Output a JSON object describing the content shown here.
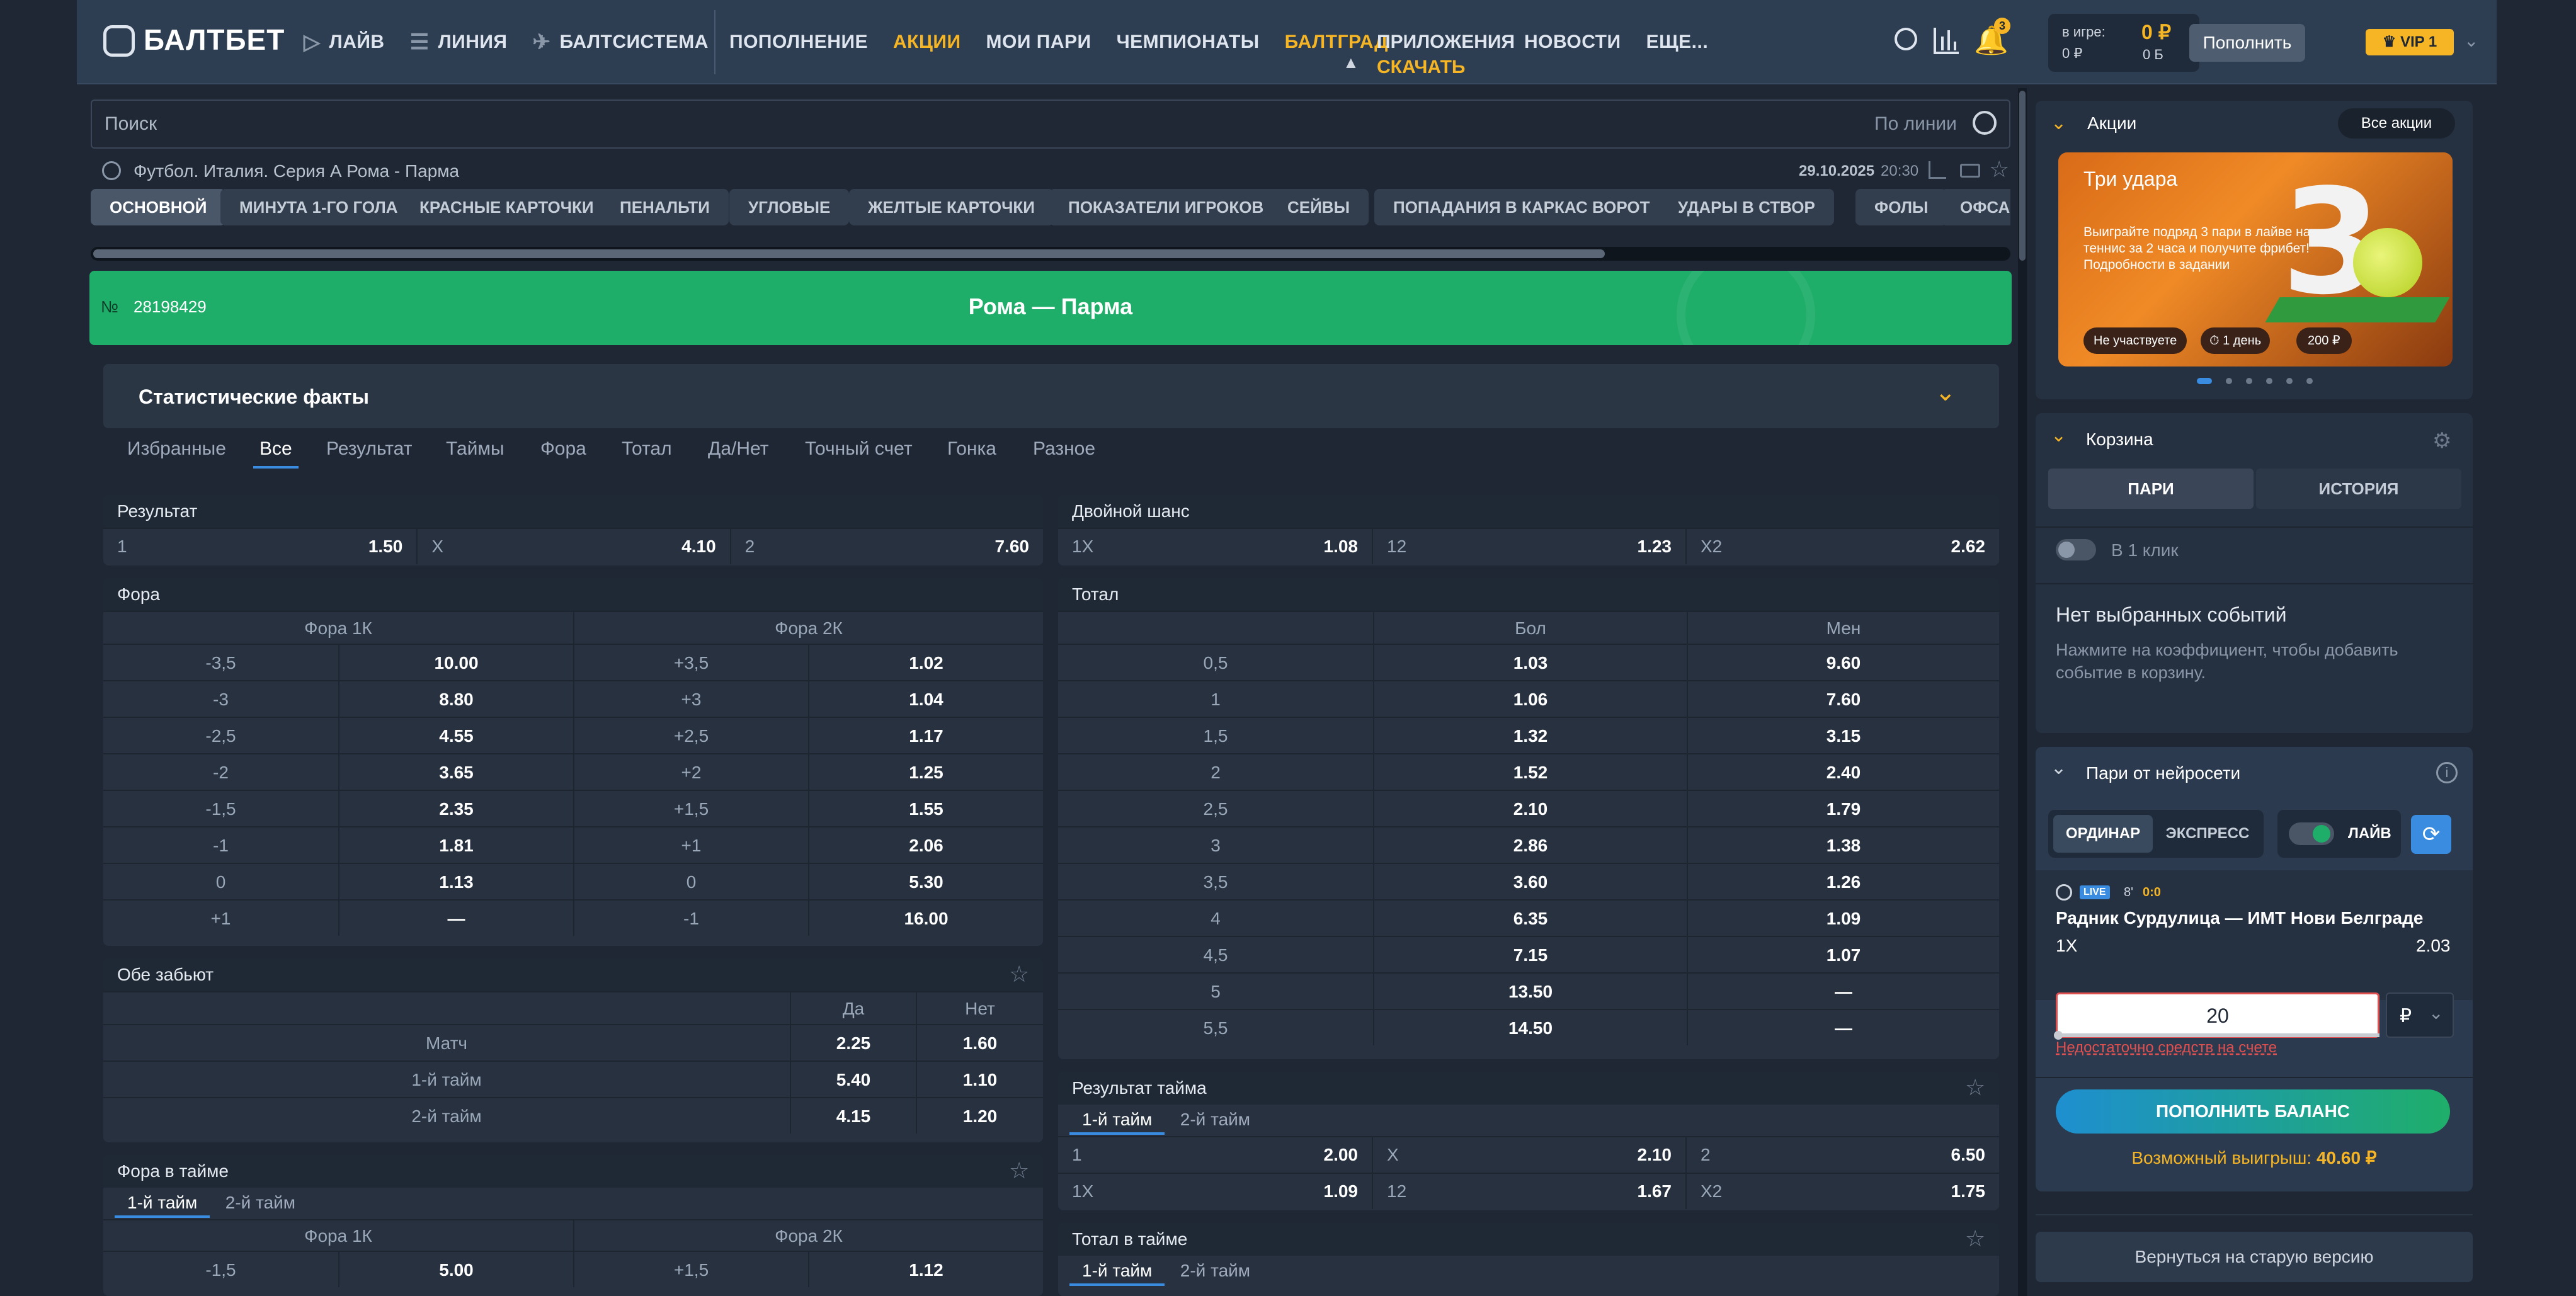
{
  "header": {
    "logo": "БАЛТБЕТ",
    "nav": [
      "ЛАЙВ",
      "ЛИНИЯ",
      "БАЛТСИСТЕМА"
    ],
    "menu": [
      "ПОПОЛНЕНИЕ",
      "АКЦИИ",
      "МОИ ПАРИ",
      "ЧЕМПИОНАТЫ",
      "БАЛТГРАД",
      "ПРИЛОЖЕНИЯ",
      "НОВОСТИ",
      "ЕЩЕ..."
    ],
    "download": "СКАЧАТЬ",
    "notif_count": "3",
    "in_game_label": "в игре:",
    "in_game_value": "0 ₽",
    "balance": "0 ₽",
    "balance2": "0 Б",
    "deposit_btn": "Пополнить",
    "vip": "VIP 1"
  },
  "search": {
    "placeholder": "Поиск",
    "mode": "По линии"
  },
  "event": {
    "breadcrumb": "Футбол. Италия. Серия А  Рома - Парма",
    "date": "29.10.2025",
    "time": "20:30",
    "number_label": "№",
    "number": "28198429",
    "title": "Рома — Парма"
  },
  "chips": [
    "ОСНОВНОЙ",
    "МИНУТА 1-ГО ГОЛА",
    "КРАСНЫЕ КАРТОЧКИ",
    "ПЕНАЛЬТИ",
    "УГЛОВЫЕ",
    "ЖЕЛТЫЕ КАРТОЧКИ",
    "ПОКАЗАТЕЛИ ИГРОКОВ",
    "СЕЙВЫ",
    "ПОПАДАНИЯ В КАРКАС ВОРОТ",
    "УДАРЫ В СТВОР",
    "ФОЛЫ",
    "ОФСАЙ"
  ],
  "stats": {
    "title": "Статистические факты"
  },
  "filters": [
    "Избранные",
    "Все",
    "Результат",
    "Таймы",
    "Фора",
    "Тотал",
    "Да/Нет",
    "Точный счет",
    "Гонка",
    "Разное"
  ],
  "result": {
    "title": "Результат",
    "cells": [
      {
        "k": "1",
        "v": "1.50"
      },
      {
        "k": "X",
        "v": "4.10"
      },
      {
        "k": "2",
        "v": "7.60"
      }
    ]
  },
  "double": {
    "title": "Двойной шанс",
    "cells": [
      {
        "k": "1X",
        "v": "1.08"
      },
      {
        "k": "12",
        "v": "1.23"
      },
      {
        "k": "X2",
        "v": "2.62"
      }
    ]
  },
  "fora": {
    "title": "Фора",
    "col1": "Фора 1К",
    "col2": "Фора 2К",
    "rows": [
      [
        "-3,5",
        "10.00",
        "+3,5",
        "1.02"
      ],
      [
        "-3",
        "8.80",
        "+3",
        "1.04"
      ],
      [
        "-2,5",
        "4.55",
        "+2,5",
        "1.17"
      ],
      [
        "-2",
        "3.65",
        "+2",
        "1.25"
      ],
      [
        "-1,5",
        "2.35",
        "+1,5",
        "1.55"
      ],
      [
        "-1",
        "1.81",
        "+1",
        "2.06"
      ],
      [
        "0",
        "1.13",
        "0",
        "5.30"
      ],
      [
        "+1",
        "—",
        "-1",
        "16.00"
      ]
    ]
  },
  "total": {
    "title": "Тотал",
    "over": "Бол",
    "under": "Мен",
    "rows": [
      [
        "0,5",
        "1.03",
        "9.60"
      ],
      [
        "1",
        "1.06",
        "7.60"
      ],
      [
        "1,5",
        "1.32",
        "3.15"
      ],
      [
        "2",
        "1.52",
        "2.40"
      ],
      [
        "2,5",
        "2.10",
        "1.79"
      ],
      [
        "3",
        "2.86",
        "1.38"
      ],
      [
        "3,5",
        "3.60",
        "1.26"
      ],
      [
        "4",
        "6.35",
        "1.09"
      ],
      [
        "4,5",
        "7.15",
        "1.07"
      ],
      [
        "5",
        "13.50",
        "—"
      ],
      [
        "5,5",
        "14.50",
        "—"
      ]
    ]
  },
  "both": {
    "title": "Обе забьют",
    "yes": "Да",
    "no": "Нет",
    "rows": [
      [
        "Матч",
        "2.25",
        "1.60"
      ],
      [
        "1-й тайм",
        "5.40",
        "1.10"
      ],
      [
        "2-й тайм",
        "4.15",
        "1.20"
      ]
    ]
  },
  "half_result": {
    "title": "Результат тайма",
    "tabs": [
      "1-й тайм",
      "2-й тайм"
    ],
    "rows": [
      [
        {
          "k": "1",
          "v": "2.00"
        },
        {
          "k": "X",
          "v": "2.10"
        },
        {
          "k": "2",
          "v": "6.50"
        }
      ],
      [
        {
          "k": "1X",
          "v": "1.09"
        },
        {
          "k": "12",
          "v": "1.67"
        },
        {
          "k": "X2",
          "v": "1.75"
        }
      ]
    ]
  },
  "half_fora": {
    "title": "Фора в тайме",
    "tabs": [
      "1-й тайм",
      "2-й тайм"
    ],
    "col1": "Фора 1К",
    "col2": "Фора 2К",
    "row": [
      "-1,5",
      "5.00",
      "+1,5",
      "1.12"
    ]
  },
  "half_total": {
    "title": "Тотал в тайме",
    "tabs": [
      "1-й тайм",
      "2-й тайм"
    ]
  },
  "promo": {
    "section": "Акции",
    "all": "Все акции",
    "card_title": "Три удара",
    "card_text": "Выиграйте подряд 3 пари в лайве на теннис за 2 часа и получите фрибет! Подробности в задании",
    "status": "Не участвуете",
    "duration": "1 день",
    "amount": "200 ₽",
    "big_number": "3"
  },
  "basket": {
    "title": "Корзина",
    "tabs": [
      "ПАРИ",
      "ИСТОРИЯ"
    ],
    "oneclick": "В 1 клик",
    "empty_title": "Нет выбранных событий",
    "empty_text": "Нажмите на коэффициент, чтобы добавить событие в корзину."
  },
  "ai": {
    "title": "Пари от нейросети",
    "tabs": [
      "ОРДИНАР",
      "ЭКСПРЕСС"
    ],
    "live_toggle": "ЛАЙВ",
    "live_badge": "LIVE",
    "minute": "8'",
    "score": "0:0",
    "match": "Радник Сурдулица — ИМТ Нови Белграде",
    "bet": "1X",
    "odd": "2.03",
    "stake": "20",
    "currency": "₽",
    "error": "Недостаточно средств на счете",
    "deposit": "ПОПОЛНИТЬ БАЛАНС",
    "win_label": "Возможный выигрыш:",
    "win_value": "40.60 ₽"
  },
  "old_version": "Вернуться на старую версию"
}
